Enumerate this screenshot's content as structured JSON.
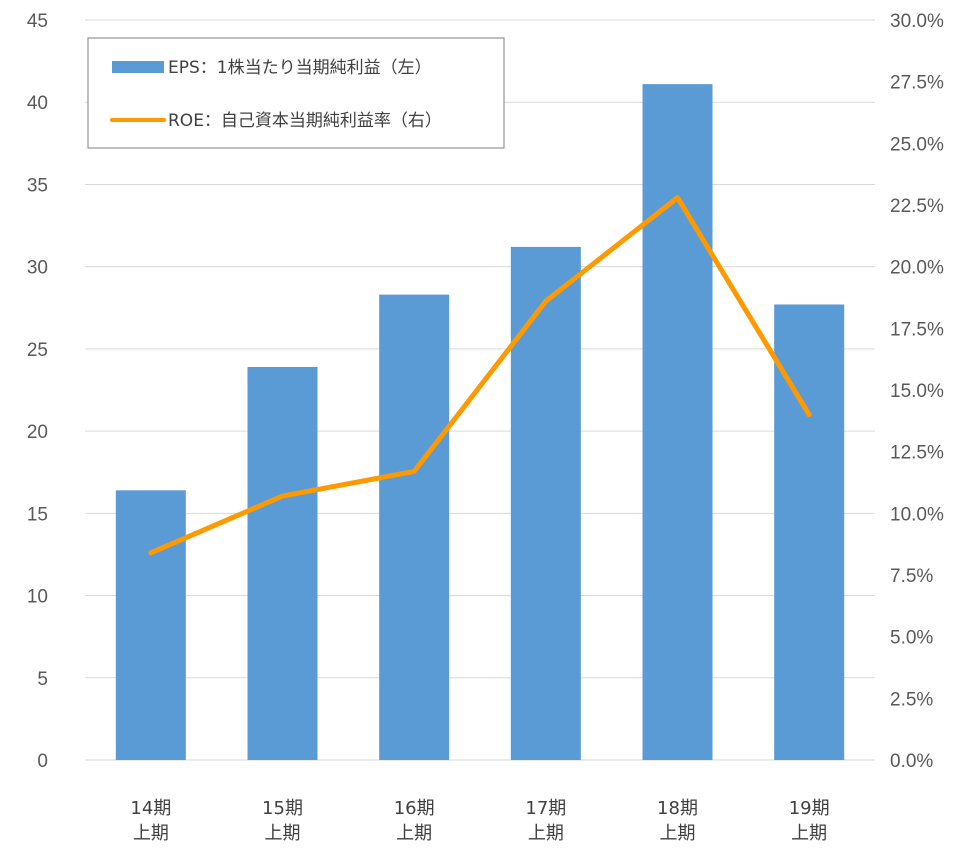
{
  "chart_data": {
    "type": "bar",
    "categories": [
      [
        "14期",
        "上期"
      ],
      [
        "15期",
        "上期"
      ],
      [
        "16期",
        "上期"
      ],
      [
        "17期",
        "上期"
      ],
      [
        "18期",
        "上期"
      ],
      [
        "19期",
        "上期"
      ]
    ],
    "series": [
      {
        "name": "EPS：1株当たり当期純利益（左）",
        "type": "bar",
        "axis": "left",
        "color": "#5b9bd5",
        "values": [
          16.4,
          23.9,
          28.3,
          31.2,
          41.1,
          27.7
        ]
      },
      {
        "name": "ROE：自己資本当期純利益率（右）",
        "type": "line",
        "axis": "right",
        "color": "#ff9900",
        "values": [
          8.4,
          10.7,
          11.7,
          18.6,
          22.8,
          14.0
        ]
      }
    ],
    "y_left": {
      "min": 0,
      "max": 45,
      "step": 5,
      "ticks": [
        "0",
        "5",
        "10",
        "15",
        "20",
        "25",
        "30",
        "35",
        "40",
        "45"
      ]
    },
    "y_right": {
      "min": 0,
      "max": 30,
      "step": 2.5,
      "ticks": [
        "0.0%",
        "2.5%",
        "5.0%",
        "7.5%",
        "10.0%",
        "12.5%",
        "15.0%",
        "17.5%",
        "20.0%",
        "22.5%",
        "25.0%",
        "27.5%",
        "30.0%"
      ]
    },
    "grid": true,
    "legend_position": "top-left"
  }
}
